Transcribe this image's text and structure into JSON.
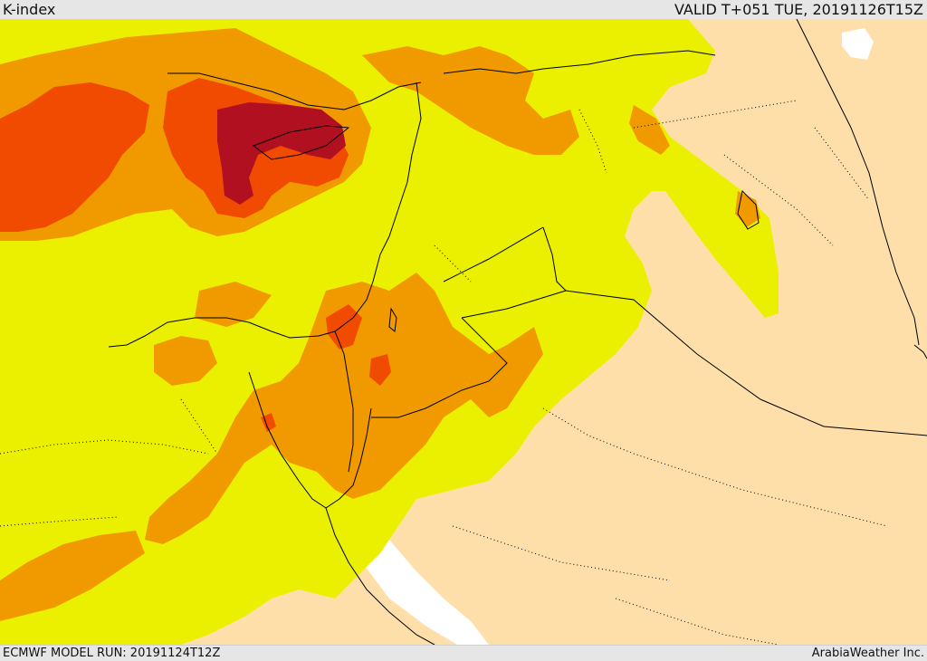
{
  "header": {
    "title": "K-index",
    "valid_time": "VALID T+051 TUE, 20191126T15Z"
  },
  "footer": {
    "model_run": "ECMWF MODEL RUN: 20191124T12Z",
    "credit": "ArabiaWeather Inc."
  },
  "map": {
    "sea_color": "#ffffff",
    "land_base_color": "#fedfaa",
    "levels": [
      {
        "name": "level-1",
        "color": "#ebf000"
      },
      {
        "name": "level-2",
        "color": "#f09a00"
      },
      {
        "name": "level-3",
        "color": "#f04b00"
      },
      {
        "name": "level-4",
        "color": "#b01020"
      }
    ],
    "line_color": "#000000"
  }
}
